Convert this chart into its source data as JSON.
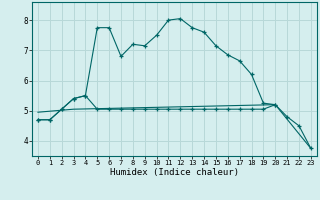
{
  "xlabel": "Humidex (Indice chaleur)",
  "background_color": "#d5eeee",
  "grid_color": "#b8d8d8",
  "line_color": "#006666",
  "xlim": [
    -0.5,
    23.5
  ],
  "ylim": [
    3.5,
    8.6
  ],
  "yticks": [
    4,
    5,
    6,
    7,
    8
  ],
  "xticks": [
    0,
    1,
    2,
    3,
    4,
    5,
    6,
    7,
    8,
    9,
    10,
    11,
    12,
    13,
    14,
    15,
    16,
    17,
    18,
    19,
    20,
    21,
    22,
    23
  ],
  "line1_x": [
    0,
    1,
    2,
    3,
    4,
    5,
    6,
    7,
    8,
    9,
    10,
    11,
    12,
    13,
    14,
    15,
    16,
    17,
    18,
    19,
    20
  ],
  "line1_y": [
    4.7,
    4.7,
    5.05,
    5.4,
    5.5,
    7.75,
    7.75,
    6.8,
    7.2,
    7.15,
    7.5,
    8.0,
    8.05,
    7.75,
    7.6,
    7.15,
    6.85,
    6.65,
    6.2,
    5.25,
    5.2
  ],
  "line2_x": [
    0,
    1,
    2,
    3,
    4,
    5,
    6,
    7,
    8,
    9,
    10,
    11,
    12,
    13,
    14,
    15,
    16,
    17,
    18,
    19,
    20,
    21,
    22,
    23
  ],
  "line2_y": [
    4.7,
    4.7,
    5.05,
    5.4,
    5.5,
    5.05,
    5.05,
    5.05,
    5.05,
    5.05,
    5.05,
    5.05,
    5.05,
    5.05,
    5.05,
    5.05,
    5.05,
    5.05,
    5.05,
    5.05,
    5.2,
    4.8,
    4.5,
    3.75
  ],
  "line3_x": [
    0,
    3,
    20,
    23
  ],
  "line3_y": [
    4.95,
    5.05,
    5.2,
    3.75
  ]
}
